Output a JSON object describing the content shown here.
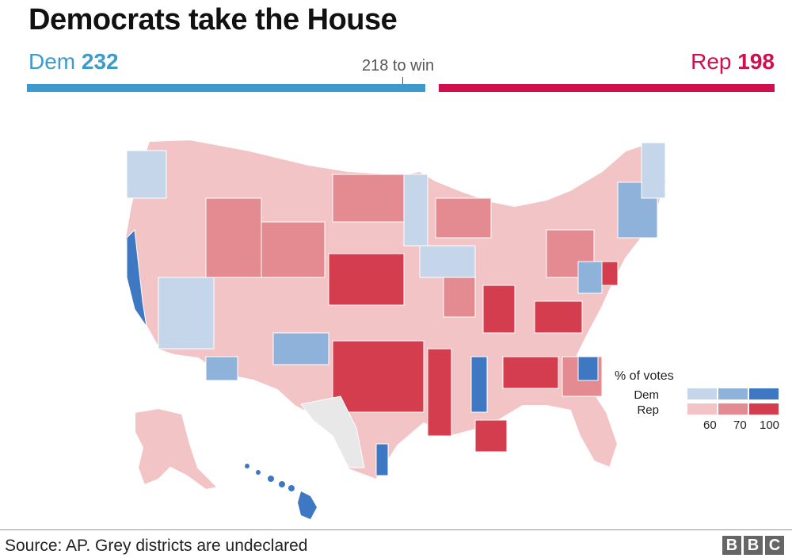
{
  "title": "Democrats take the House",
  "scoreboard": {
    "dem": {
      "label": "Dem",
      "seats": 232,
      "seats_text": "232",
      "color": "#3d9acb"
    },
    "rep": {
      "label": "Rep",
      "seats": 198,
      "seats_text": "198",
      "color": "#d0104c"
    },
    "threshold_text": "218 to win",
    "threshold": 218,
    "total": 435
  },
  "legend": {
    "title": "% of votes",
    "dem_label": "Dem",
    "rep_label": "Rep",
    "ticks": [
      "60",
      "70",
      "100"
    ],
    "dem_colors": [
      "#c6d6ea",
      "#8fb2da",
      "#3f78c2"
    ],
    "rep_colors": [
      "#f2c4c6",
      "#e48b91",
      "#d43d4d"
    ],
    "undeclared_color": "#e8e8e8"
  },
  "footer": {
    "source": "Source: AP. Grey districts are undeclared",
    "logo_letters": [
      "B",
      "B",
      "C"
    ]
  }
}
